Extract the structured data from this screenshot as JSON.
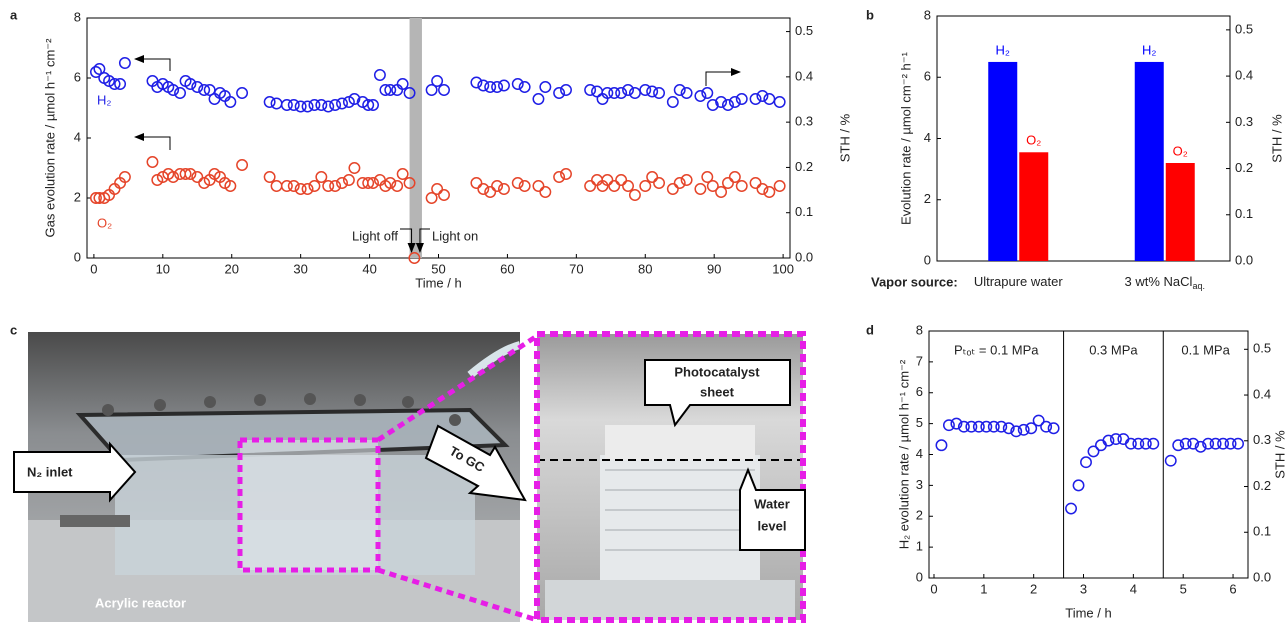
{
  "panel_labels": [
    "a",
    "b",
    "c",
    "d"
  ],
  "chart_data": [
    {
      "type": "scatter",
      "x_label": "Time / h",
      "y_label": "Gas evolution rate / µmol h⁻¹ cm⁻²",
      "y2_label": "STH / %",
      "xlim": [
        -1,
        101
      ],
      "ylim": [
        0,
        8
      ],
      "y2lim": [
        0,
        0.53
      ],
      "xticks": [
        0,
        10,
        20,
        30,
        40,
        50,
        60,
        70,
        80,
        90,
        100
      ],
      "yticks": [
        0,
        2,
        4,
        6,
        8
      ],
      "y2ticks": [
        {
          "value": 0,
          "label": "0.0"
        },
        0.1,
        0.2,
        0.3,
        0.4,
        0.5
      ],
      "shaded_x": [
        45.8,
        47.6
      ],
      "annotations": [
        "Light off",
        "Light on"
      ],
      "x": [
        0.3,
        0.8,
        1.5,
        2.2,
        3,
        3.8,
        4.5,
        8.5,
        9.2,
        10,
        10.8,
        11.5,
        12.5,
        13.3,
        14,
        15,
        16,
        16.8,
        17.5,
        18.3,
        19,
        19.8,
        21.5,
        25.5,
        26.5,
        28,
        29,
        30,
        31,
        32,
        33,
        34,
        35,
        36,
        37,
        37.8,
        39,
        39.8,
        40.5,
        41.5,
        42.3,
        43,
        44,
        44.8,
        45.8,
        46.5,
        49,
        49.8,
        50.8,
        55.5,
        56.5,
        57.5,
        58.5,
        59.5,
        61.5,
        62.5,
        64.5,
        65.5,
        67.5,
        68.5,
        72,
        73,
        73.8,
        74.5,
        75.5,
        76.5,
        77.5,
        78.5,
        80,
        81,
        82,
        84,
        85,
        86,
        88,
        89,
        89.8,
        91,
        92,
        93,
        94,
        96,
        97,
        98,
        99.5
      ],
      "series": [
        {
          "name": "H₂",
          "color": "#1f1fe6",
          "values": [
            6.2,
            6.3,
            6.0,
            5.9,
            5.8,
            5.8,
            6.5,
            5.9,
            5.7,
            5.8,
            5.7,
            5.6,
            5.5,
            5.9,
            5.8,
            5.7,
            5.6,
            5.6,
            5.3,
            5.5,
            5.4,
            5.2,
            5.5,
            5.2,
            5.15,
            5.1,
            5.1,
            5.05,
            5.05,
            5.1,
            5.1,
            5.05,
            5.1,
            5.15,
            5.2,
            5.3,
            5.2,
            5.1,
            5.1,
            6.1,
            5.6,
            5.6,
            5.6,
            5.8,
            5.5,
            null,
            5.6,
            5.9,
            5.6,
            5.85,
            5.75,
            5.7,
            5.7,
            5.75,
            5.8,
            5.7,
            5.3,
            5.7,
            5.5,
            5.6,
            5.6,
            5.55,
            5.3,
            5.5,
            5.5,
            5.5,
            5.6,
            5.5,
            5.6,
            5.55,
            5.5,
            5.2,
            5.6,
            5.5,
            5.4,
            5.5,
            5.1,
            5.2,
            5.1,
            5.2,
            5.3,
            5.3,
            5.4,
            5.3,
            5.2
          ]
        },
        {
          "name": "O₂",
          "color": "#e5452a",
          "values": [
            2.0,
            2.0,
            2.0,
            2.1,
            2.3,
            2.5,
            2.7,
            3.2,
            2.6,
            2.7,
            2.8,
            2.7,
            2.8,
            2.8,
            2.8,
            2.7,
            2.5,
            2.6,
            2.8,
            2.7,
            2.5,
            2.4,
            3.1,
            2.7,
            2.4,
            2.4,
            2.4,
            2.3,
            2.3,
            2.4,
            2.7,
            2.4,
            2.4,
            2.5,
            2.6,
            3.0,
            2.5,
            2.5,
            2.5,
            2.6,
            2.4,
            2.5,
            2.4,
            2.8,
            2.5,
            0.0,
            2.0,
            2.3,
            2.1,
            2.5,
            2.3,
            2.2,
            2.4,
            2.3,
            2.5,
            2.4,
            2.4,
            2.2,
            2.7,
            2.8,
            2.4,
            2.6,
            2.4,
            2.6,
            2.4,
            2.6,
            2.4,
            2.1,
            2.4,
            2.7,
            2.5,
            2.3,
            2.5,
            2.6,
            2.3,
            2.7,
            2.4,
            2.2,
            2.5,
            2.7,
            2.4,
            2.5,
            2.3,
            2.2,
            2.4
          ]
        }
      ]
    },
    {
      "type": "bar",
      "y_label": "Evolution rate / µmol  cm⁻² h⁻¹",
      "y2_label": "STH / %",
      "x_label": "Vapor source:",
      "categories": [
        "Ultrapure water",
        "3 wt% NaCl"
      ],
      "categories_subscript": [
        null,
        "aq."
      ],
      "ylim": [
        0,
        8
      ],
      "y2lim": [
        0,
        0.53
      ],
      "yticks": [
        0,
        2,
        4,
        6,
        8
      ],
      "y2ticks": [
        {
          "value": 0,
          "label": "0.0"
        },
        0.1,
        0.2,
        0.3,
        0.4,
        0.5
      ],
      "series": [
        {
          "name": "H₂",
          "color": "#0000ff",
          "values": [
            6.5,
            6.5
          ]
        },
        {
          "name": "O₂",
          "color": "#ff0000",
          "values": [
            3.55,
            3.2
          ]
        }
      ]
    },
    {
      "type": "scatter",
      "x_label": "Time / h",
      "y_label": "H₂ evolution rate / µmol h⁻¹ cm⁻²",
      "y2_label": "STH / %",
      "xlim": [
        -0.1,
        6.3
      ],
      "ylim": [
        0,
        8
      ],
      "y2lim": [
        0,
        0.54
      ],
      "xticks": [
        0,
        1,
        2,
        3,
        4,
        5,
        6
      ],
      "yticks": [
        0,
        1,
        2,
        3,
        4,
        5,
        6,
        7,
        8
      ],
      "y2ticks": [
        {
          "value": 0,
          "label": "0.0"
        },
        0.1,
        0.2,
        0.3,
        0.4,
        0.5
      ],
      "dividers": [
        2.6,
        4.6
      ],
      "annotations": [
        "Pₜₒₜ = 0.1 MPa",
        "0.3 MPa",
        "0.1 MPa"
      ],
      "x": [
        0.15,
        0.3,
        0.45,
        0.6,
        0.75,
        0.9,
        1.05,
        1.2,
        1.35,
        1.5,
        1.65,
        1.8,
        1.95,
        2.1,
        2.25,
        2.4,
        2.75,
        2.9,
        3.05,
        3.2,
        3.35,
        3.5,
        3.65,
        3.8,
        3.95,
        4.1,
        4.25,
        4.4,
        4.75,
        4.9,
        5.05,
        5.2,
        5.35,
        5.5,
        5.65,
        5.8,
        5.95,
        6.1
      ],
      "series": [
        {
          "name": "H₂",
          "color": "#1f1fe6",
          "values": [
            4.3,
            4.95,
            5.0,
            4.9,
            4.9,
            4.9,
            4.9,
            4.9,
            4.9,
            4.85,
            4.75,
            4.8,
            4.85,
            5.1,
            4.9,
            4.85,
            2.25,
            3.0,
            3.75,
            4.1,
            4.3,
            4.45,
            4.5,
            4.5,
            4.35,
            4.35,
            4.35,
            4.35,
            3.8,
            4.3,
            4.35,
            4.35,
            4.25,
            4.35,
            4.35,
            4.35,
            4.35,
            4.35
          ]
        }
      ]
    }
  ],
  "photo_labels": {
    "inlet": "N₂ inlet",
    "outlet": "To GC",
    "reactor": "Acrylic reactor",
    "sheet": [
      "Photocatalyst",
      "sheet"
    ],
    "water": [
      "Water",
      "level"
    ]
  }
}
